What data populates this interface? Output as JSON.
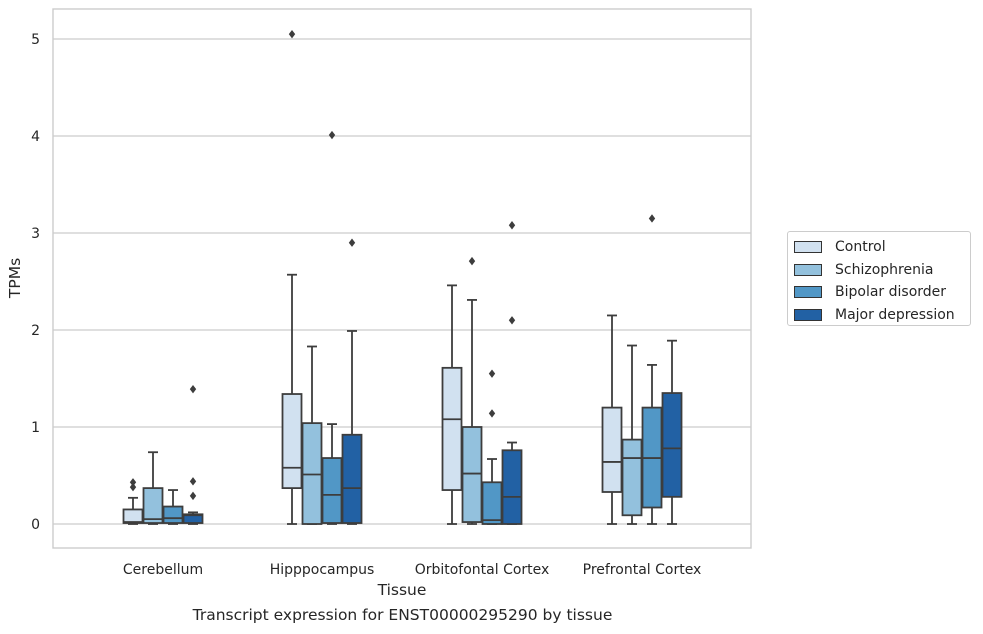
{
  "chart_data": {
    "type": "box",
    "title": "",
    "caption": "Transcript expression for ENST00000295290 by tissue",
    "xlabel": "Tissue",
    "ylabel": "TPMs",
    "ylim": [
      -0.25,
      5.3
    ],
    "yticks": [
      0,
      1,
      2,
      3,
      4,
      5
    ],
    "grid": "horizontal",
    "legend_position": "right",
    "categories": [
      "Cerebellum",
      "Hipppocampus",
      "Orbitofontal Cortex",
      "Prefrontal Cortex"
    ],
    "series": [
      {
        "name": "Control",
        "color": "#d1e1f0",
        "boxes": [
          {
            "whisker_low": 0.0,
            "q1": 0.01,
            "median": 0.02,
            "q3": 0.15,
            "whisker_high": 0.27,
            "outliers": [
              0.38,
              0.43
            ]
          },
          {
            "whisker_low": 0.0,
            "q1": 0.37,
            "median": 0.58,
            "q3": 1.34,
            "whisker_high": 2.57,
            "outliers": [
              5.05
            ]
          },
          {
            "whisker_low": 0.0,
            "q1": 0.35,
            "median": 1.08,
            "q3": 1.61,
            "whisker_high": 2.46,
            "outliers": []
          },
          {
            "whisker_low": 0.0,
            "q1": 0.33,
            "median": 0.64,
            "q3": 1.2,
            "whisker_high": 2.15,
            "outliers": []
          }
        ]
      },
      {
        "name": "Schizophrenia",
        "color": "#93c1dd",
        "boxes": [
          {
            "whisker_low": 0.0,
            "q1": 0.01,
            "median": 0.05,
            "q3": 0.37,
            "whisker_high": 0.74,
            "outliers": []
          },
          {
            "whisker_low": 0.0,
            "q1": 0.0,
            "median": 0.51,
            "q3": 1.04,
            "whisker_high": 1.83,
            "outliers": []
          },
          {
            "whisker_low": 0.0,
            "q1": 0.02,
            "median": 0.52,
            "q3": 1.0,
            "whisker_high": 2.31,
            "outliers": [
              2.71
            ]
          },
          {
            "whisker_low": 0.0,
            "q1": 0.09,
            "median": 0.68,
            "q3": 0.87,
            "whisker_high": 1.84,
            "outliers": []
          }
        ]
      },
      {
        "name": "Bipolar disorder",
        "color": "#5197c6",
        "boxes": [
          {
            "whisker_low": 0.0,
            "q1": 0.01,
            "median": 0.06,
            "q3": 0.18,
            "whisker_high": 0.35,
            "outliers": []
          },
          {
            "whisker_low": 0.0,
            "q1": 0.01,
            "median": 0.3,
            "q3": 0.68,
            "whisker_high": 1.03,
            "outliers": [
              4.01
            ]
          },
          {
            "whisker_low": 0.0,
            "q1": 0.0,
            "median": 0.04,
            "q3": 0.43,
            "whisker_high": 0.67,
            "outliers": [
              1.14,
              1.55
            ]
          },
          {
            "whisker_low": 0.0,
            "q1": 0.17,
            "median": 0.68,
            "q3": 1.2,
            "whisker_high": 1.64,
            "outliers": [
              3.15
            ]
          }
        ]
      },
      {
        "name": "Major depression",
        "color": "#2261a4",
        "boxes": [
          {
            "whisker_low": 0.0,
            "q1": 0.01,
            "median": 0.09,
            "q3": 0.1,
            "whisker_high": 0.12,
            "outliers": [
              0.29,
              0.44,
              1.39
            ]
          },
          {
            "whisker_low": 0.0,
            "q1": 0.01,
            "median": 0.37,
            "q3": 0.92,
            "whisker_high": 1.99,
            "outliers": [
              2.9
            ]
          },
          {
            "whisker_low": 0.0,
            "q1": 0.0,
            "median": 0.28,
            "q3": 0.76,
            "whisker_high": 0.84,
            "outliers": [
              2.1,
              3.08
            ]
          },
          {
            "whisker_low": 0.0,
            "q1": 0.28,
            "median": 0.78,
            "q3": 1.35,
            "whisker_high": 1.89,
            "outliers": []
          }
        ]
      }
    ]
  }
}
